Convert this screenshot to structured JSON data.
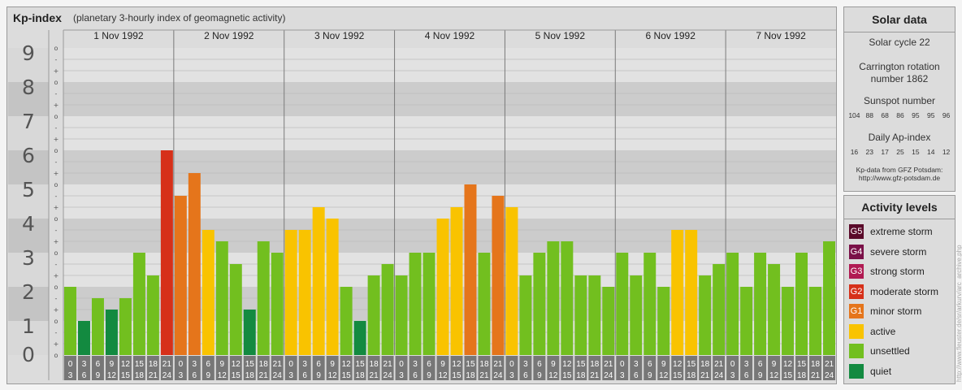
{
  "header": {
    "title": "Kp-index",
    "subtitle": "(planetary 3-hourly index of geomagnetic activity)"
  },
  "chart_data": {
    "type": "bar",
    "title": "Kp-index",
    "subtitle": "(planetary 3-hourly index of geomagnetic activity)",
    "ylim": [
      0,
      9
    ],
    "y_ticks": [
      "0",
      "1",
      "2",
      "3",
      "4",
      "5",
      "6",
      "7",
      "8",
      "9"
    ],
    "sub_ticks": [
      "o",
      "+",
      "-"
    ],
    "days": [
      "1 Nov 1992",
      "2 Nov 1992",
      "3 Nov 1992",
      "4 Nov 1992",
      "5 Nov 1992",
      "6 Nov 1992",
      "7 Nov 1992"
    ],
    "interval_starts": [
      "0",
      "3",
      "6",
      "9",
      "12",
      "15",
      "18",
      "21"
    ],
    "interval_ends": [
      "3",
      "6",
      "9",
      "12",
      "15",
      "18",
      "21",
      "24"
    ],
    "values": [
      [
        2.0,
        1.0,
        1.667,
        1.333,
        1.667,
        3.0,
        2.333,
        6.0
      ],
      [
        4.667,
        5.333,
        3.667,
        3.333,
        2.667,
        1.333,
        3.333,
        3.0
      ],
      [
        3.667,
        3.667,
        4.333,
        4.0,
        2.0,
        1.0,
        2.333,
        2.667
      ],
      [
        2.333,
        3.0,
        3.0,
        4.0,
        4.333,
        5.0,
        3.0,
        4.667
      ],
      [
        4.333,
        2.333,
        3.0,
        3.333,
        3.333,
        2.333,
        2.333,
        2.0
      ],
      [
        3.0,
        2.333,
        3.0,
        2.0,
        3.667,
        3.667,
        2.333,
        2.667
      ],
      [
        3.0,
        2.0,
        3.0,
        2.667,
        2.0,
        3.0,
        2.0,
        3.333
      ]
    ],
    "colors": {
      "quiet": "#138a40",
      "unsettled": "#72bf1f",
      "active": "#f9c300",
      "minor": "#e5751b",
      "moderate": "#d63019"
    },
    "grid": true
  },
  "solar": {
    "title": "Solar data",
    "cycle": "Solar cycle 22",
    "carrington": "Carrington rotation number 1862",
    "sunspot_title": "Sunspot number",
    "sunspot_values": [
      "104",
      "88",
      "68",
      "86",
      "95",
      "95",
      "96"
    ],
    "ap_title": "Daily Ap-index",
    "ap_values": [
      "16",
      "23",
      "17",
      "25",
      "15",
      "14",
      "12"
    ],
    "source": "Kp-data from GFZ Potsdam:",
    "source_url": "http://www.gfz-potsdam.de"
  },
  "legend": {
    "title": "Activity levels",
    "items": [
      {
        "code": "G5",
        "label": "extreme storm",
        "color": "#5a0a2a"
      },
      {
        "code": "G4",
        "label": "severe storm",
        "color": "#7a1048"
      },
      {
        "code": "G3",
        "label": "strong storm",
        "color": "#b01a52"
      },
      {
        "code": "G2",
        "label": "moderate storm",
        "color": "#d63019"
      },
      {
        "code": "G1",
        "label": "minor storm",
        "color": "#e5751b"
      },
      {
        "code": "",
        "label": "active",
        "color": "#f9c300"
      },
      {
        "code": "",
        "label": "unsettled",
        "color": "#72bf1f"
      },
      {
        "code": "",
        "label": "quiet",
        "color": "#138a40"
      }
    ]
  },
  "watermark": "http://www.fleuster.de/sr/arkurv/arc_archive.php"
}
